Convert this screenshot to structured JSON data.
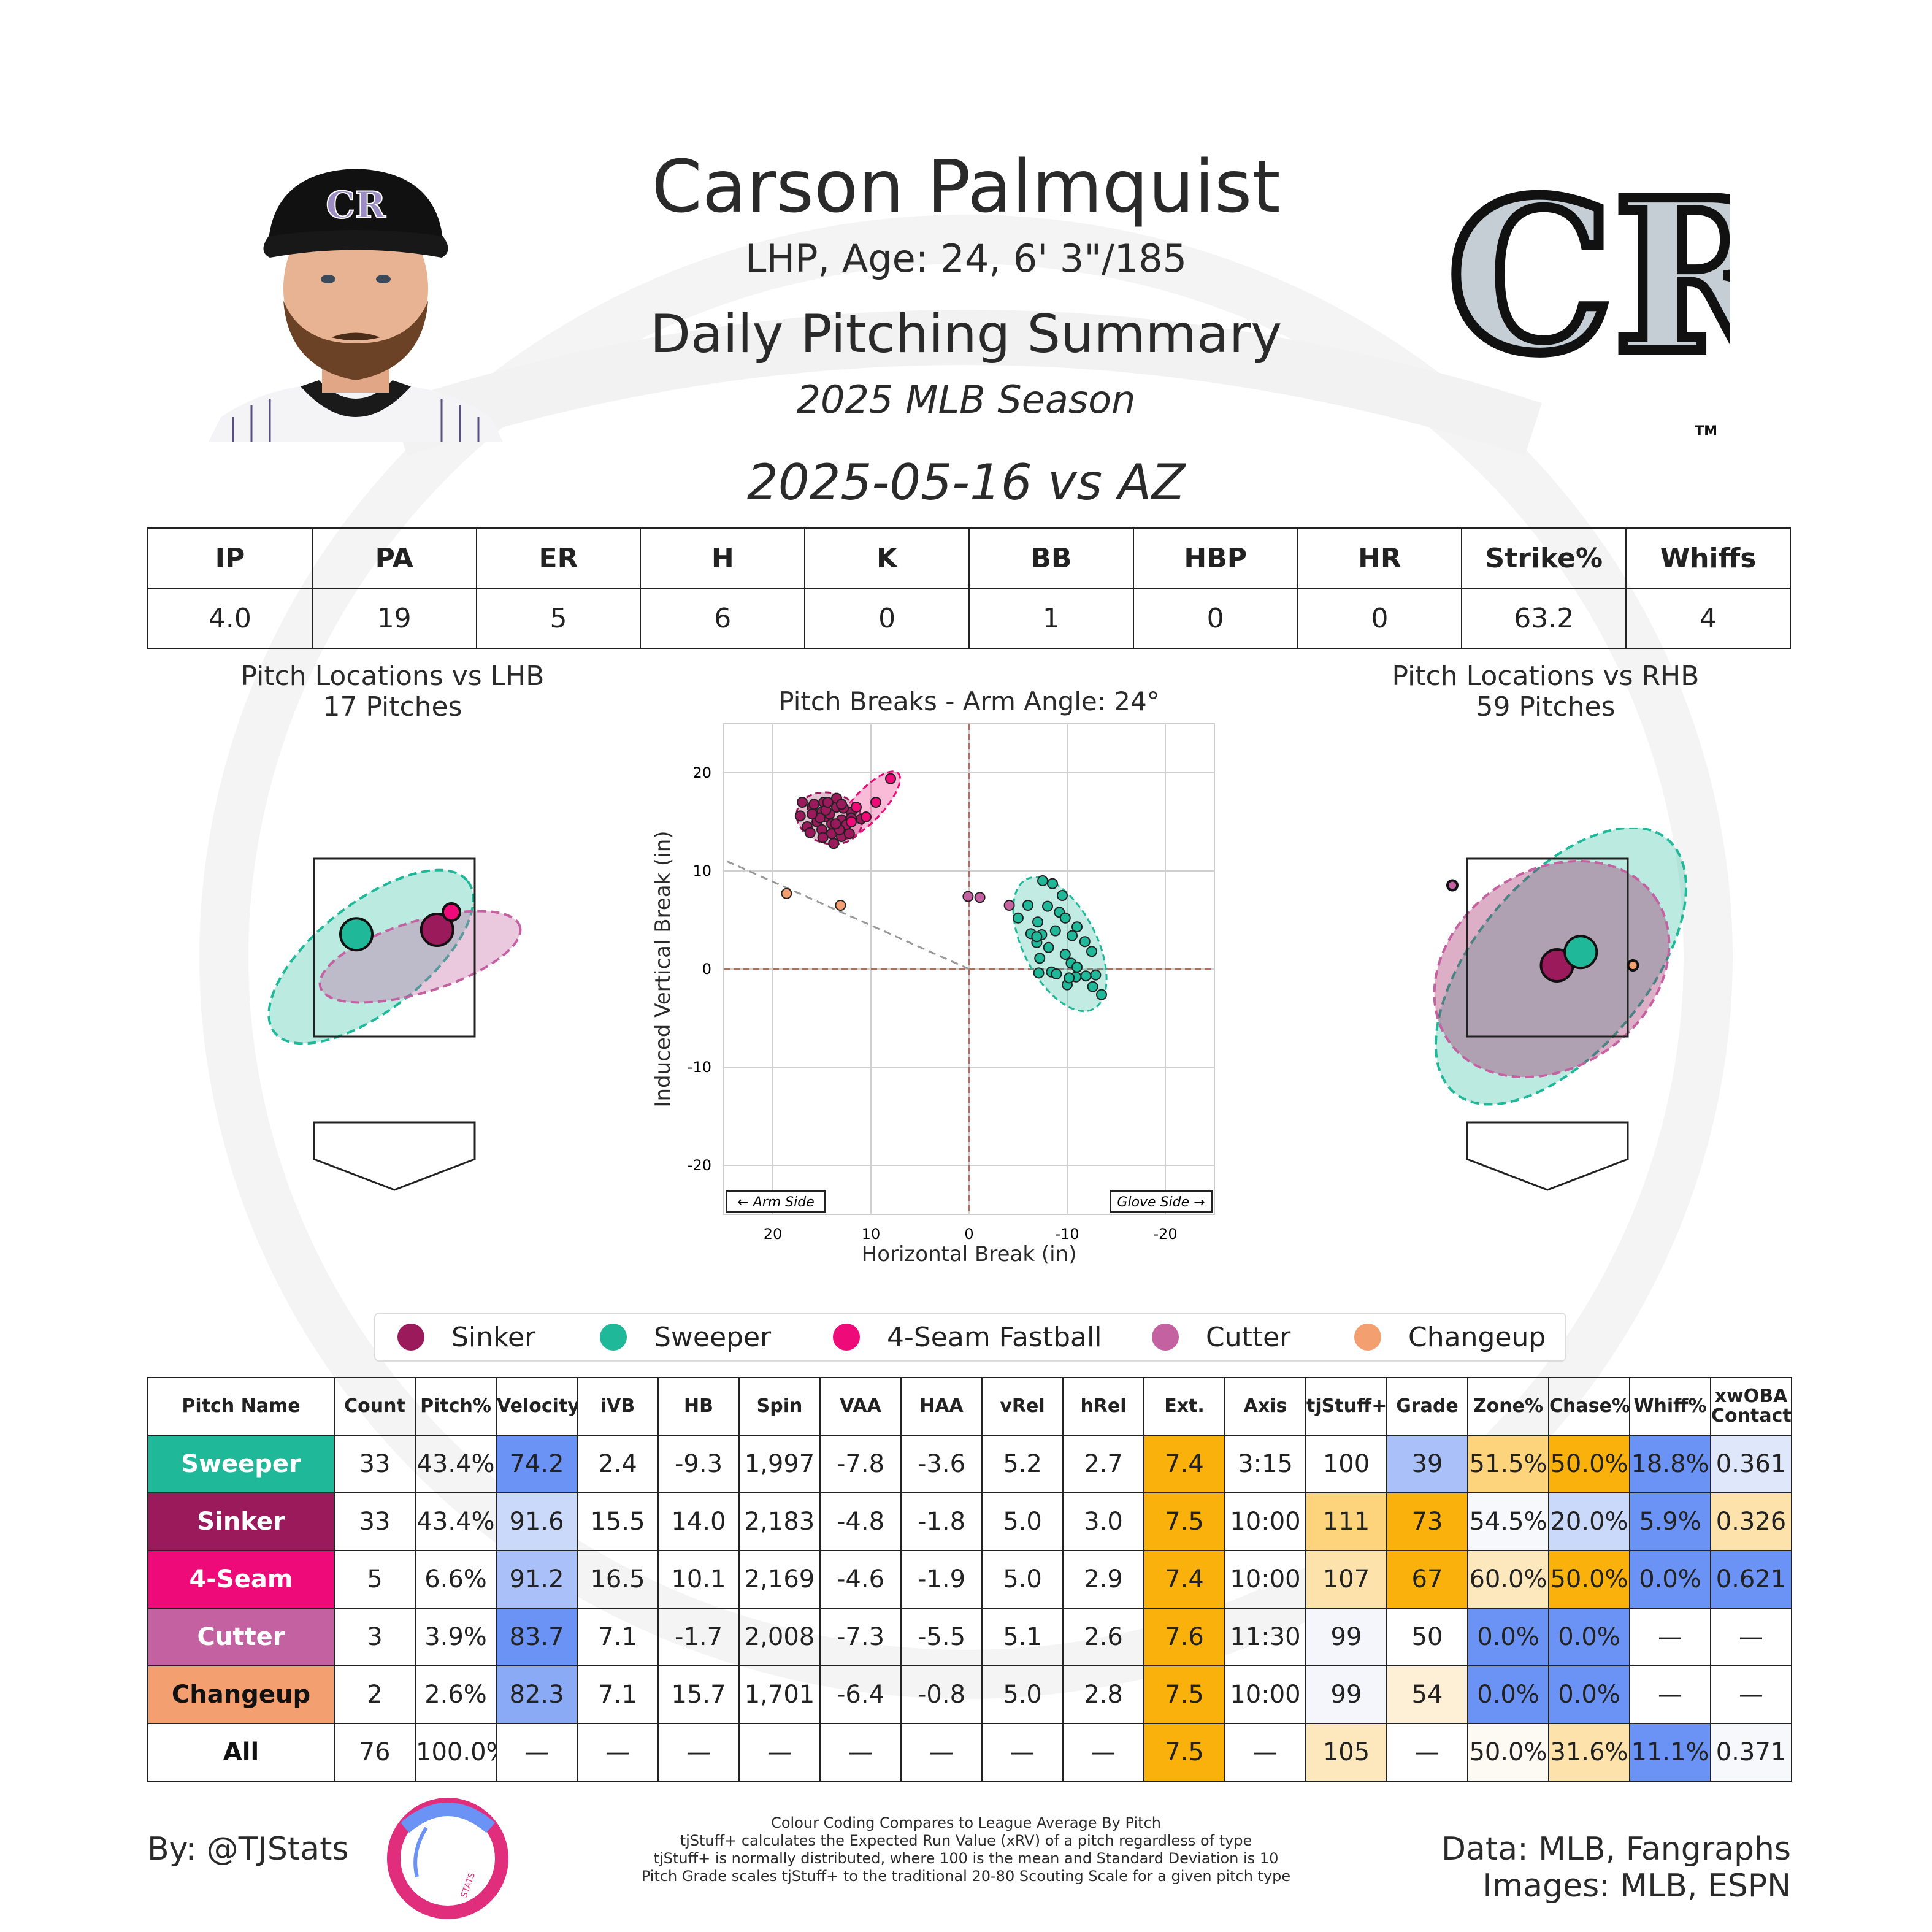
{
  "header": {
    "name": "Carson Palmquist",
    "bio": "LHP, Age: 24, 6' 3\"/185",
    "summary_title": "Daily Pitching Summary",
    "season": "2025 MLB Season",
    "game": "2025-05-16 vs AZ",
    "cap_logo_text": "CR",
    "team_logo_text": "CR",
    "trademark": "TM"
  },
  "game_stats": {
    "headers": [
      "IP",
      "PA",
      "ER",
      "H",
      "K",
      "BB",
      "HBP",
      "HR",
      "Strike%",
      "Whiffs"
    ],
    "values": [
      "4.0",
      "19",
      "5",
      "6",
      "0",
      "1",
      "0",
      "0",
      "63.2",
      "4"
    ]
  },
  "colors": {
    "Sinker": "#9a1a5c",
    "Sweeper": "#1fb899",
    "4-Seam Fastball": "#ee0a78",
    "Cutter": "#c461a1",
    "Changeup": "#f39f6f"
  },
  "chart_data": [
    {
      "type": "scatter",
      "id": "loc_lhb",
      "title": "Pitch Locations vs LHB",
      "subtitle": "17 Pitches",
      "series": [
        {
          "name": "Sweeper",
          "mean": [
            -0.4,
            2.65
          ]
        },
        {
          "name": "Sinker",
          "mean": [
            0.45,
            2.7
          ]
        },
        {
          "name": "4-Seam Fastball",
          "mean": [
            0.6,
            2.9
          ]
        }
      ]
    },
    {
      "type": "scatter",
      "id": "pitch_breaks",
      "title": "Pitch Breaks - Arm Angle: 24°",
      "xlabel": "Horizontal Break (in)",
      "ylabel": "Induced Vertical Break (in)",
      "xlim": [
        25,
        -25
      ],
      "ylim": [
        -25,
        25
      ],
      "x_ticks": [
        20,
        10,
        0,
        -10,
        -20
      ],
      "y_ticks": [
        20,
        10,
        0,
        -10,
        -20
      ],
      "annotations": [
        "← Arm Side",
        "Glove Side →"
      ],
      "arm_angle_deg": 24,
      "series": [
        {
          "name": "Sinker",
          "points": [
            [
              17,
              17
            ],
            [
              16,
              16.5
            ],
            [
              15,
              16
            ],
            [
              14.5,
              15.5
            ],
            [
              15.5,
              15
            ],
            [
              14,
              14.8
            ],
            [
              13.5,
              16.5
            ],
            [
              13,
              15.2
            ],
            [
              14.2,
              15.8
            ],
            [
              15,
              14.2
            ],
            [
              16.5,
              14.5
            ],
            [
              12.5,
              14.7
            ],
            [
              13,
              13.5
            ],
            [
              14,
              13.8
            ],
            [
              12,
              16
            ],
            [
              13.5,
              17.4
            ],
            [
              14.8,
              17
            ],
            [
              12,
              15.4
            ],
            [
              11,
              15.3
            ],
            [
              13.8,
              12.8
            ],
            [
              15.2,
              15.4
            ],
            [
              14.6,
              16.2
            ],
            [
              16,
              15.8
            ],
            [
              13.2,
              14.2
            ],
            [
              12.8,
              16.4
            ],
            [
              14.4,
              17
            ],
            [
              15.8,
              16.8
            ],
            [
              12.2,
              13.8
            ],
            [
              13.6,
              14.8
            ],
            [
              17.2,
              15.6
            ],
            [
              14.9,
              13.4
            ],
            [
              16.2,
              13.9
            ],
            [
              13,
              16.8
            ]
          ]
        },
        {
          "name": "4-Seam Fastball",
          "points": [
            [
              8,
              19.4
            ],
            [
              9.5,
              17
            ],
            [
              11.5,
              16.5
            ],
            [
              10.5,
              15.5
            ],
            [
              12,
              15
            ]
          ]
        },
        {
          "name": "Sweeper",
          "points": [
            [
              -7.5,
              9
            ],
            [
              -8.5,
              8.7
            ],
            [
              -9.5,
              7.5
            ],
            [
              -6,
              6.5
            ],
            [
              -8,
              6.4
            ],
            [
              -9.2,
              5.8
            ],
            [
              -5,
              5.2
            ],
            [
              -7,
              4.8
            ],
            [
              -9.8,
              5.2
            ],
            [
              -11,
              4.3
            ],
            [
              -6.3,
              3.6
            ],
            [
              -7.4,
              3.5
            ],
            [
              -8.8,
              3.9
            ],
            [
              -10.5,
              3.4
            ],
            [
              -6.9,
              2.7
            ],
            [
              -8.1,
              2.2
            ],
            [
              -11.8,
              2.8
            ],
            [
              -12.5,
              1.8
            ],
            [
              -9.8,
              1.5
            ],
            [
              -7.2,
              1.1
            ],
            [
              -10.4,
              0.6
            ],
            [
              -8.4,
              -0.3
            ],
            [
              -11,
              0.2
            ],
            [
              -12.9,
              -0.6
            ],
            [
              -7.1,
              -0.4
            ],
            [
              -8.9,
              -0.5
            ],
            [
              -10.9,
              -0.8
            ],
            [
              -11.9,
              -0.7
            ],
            [
              -6.9,
              3.3
            ],
            [
              -10,
              -1.6
            ],
            [
              -10.2,
              -0.9
            ],
            [
              -13.5,
              -2.6
            ],
            [
              -12.6,
              -1.8
            ]
          ]
        },
        {
          "name": "Cutter",
          "points": [
            [
              0.1,
              7.4
            ],
            [
              -1.1,
              7.3
            ],
            [
              -4.1,
              6.5
            ]
          ]
        },
        {
          "name": "Changeup",
          "points": [
            [
              18.6,
              7.7
            ],
            [
              13.1,
              6.5
            ]
          ]
        }
      ]
    },
    {
      "type": "scatter",
      "id": "loc_rhb",
      "title": "Pitch Locations vs RHB",
      "subtitle": "59 Pitches",
      "series": [
        {
          "name": "Sinker",
          "mean": [
            0.1,
            2.3
          ]
        },
        {
          "name": "Sweeper",
          "mean": [
            0.35,
            2.45
          ]
        },
        {
          "name": "Changeup",
          "mean": [
            0.9,
            2.3
          ]
        },
        {
          "name": "Cutter",
          "mean": [
            -1.0,
            3.2
          ]
        }
      ]
    },
    {
      "type": "table",
      "id": "pitch_metrics",
      "headers": [
        "Pitch Name",
        "Count",
        "Pitch%",
        "Velocity",
        "iVB",
        "HB",
        "Spin",
        "VAA",
        "HAA",
        "vRel",
        "hRel",
        "Ext.",
        "Axis",
        "tjStuff+",
        "Grade",
        "Zone%",
        "Chase%",
        "Whiff%",
        "xwOBA Contact"
      ],
      "rows": [
        {
          "pitch": "Sweeper",
          "label": "Sweeper",
          "color": "#1fb899",
          "text": "#ffffff",
          "cells": [
            "33",
            "43.4%",
            "74.2",
            "2.4",
            "-9.3",
            "1,997",
            "-7.8",
            "-3.6",
            "5.2",
            "2.7",
            "7.4",
            "3:15",
            "100",
            "39",
            "51.5%",
            "50.0%",
            "18.8%",
            "0.361"
          ]
        },
        {
          "pitch": "Sinker",
          "label": "Sinker",
          "color": "#9a1a5c",
          "text": "#ffffff",
          "cells": [
            "33",
            "43.4%",
            "91.6",
            "15.5",
            "14.0",
            "2,183",
            "-4.8",
            "-1.8",
            "5.0",
            "3.0",
            "7.5",
            "10:00",
            "111",
            "73",
            "54.5%",
            "20.0%",
            "5.9%",
            "0.326"
          ]
        },
        {
          "pitch": "4-Seam Fastball",
          "label": "4-Seam",
          "color": "#ee0a78",
          "text": "#ffffff",
          "cells": [
            "5",
            "6.6%",
            "91.2",
            "16.5",
            "10.1",
            "2,169",
            "-4.6",
            "-1.9",
            "5.0",
            "2.9",
            "7.4",
            "10:00",
            "107",
            "67",
            "60.0%",
            "50.0%",
            "0.0%",
            "0.621"
          ]
        },
        {
          "pitch": "Cutter",
          "label": "Cutter",
          "color": "#c461a1",
          "text": "#ffffff",
          "cells": [
            "3",
            "3.9%",
            "83.7",
            "7.1",
            "-1.7",
            "2,008",
            "-7.3",
            "-5.5",
            "5.1",
            "2.6",
            "7.6",
            "11:30",
            "99",
            "50",
            "0.0%",
            "0.0%",
            "—",
            "—"
          ]
        },
        {
          "pitch": "Changeup",
          "label": "Changeup",
          "color": "#f39f6f",
          "text": "#111111",
          "cells": [
            "2",
            "2.6%",
            "82.3",
            "7.1",
            "15.7",
            "1,701",
            "-6.4",
            "-0.8",
            "5.0",
            "2.8",
            "7.5",
            "10:00",
            "99",
            "54",
            "0.0%",
            "0.0%",
            "—",
            "—"
          ]
        },
        {
          "pitch": "All",
          "label": "All",
          "color": "#ffffff",
          "text": "#111111",
          "cells": [
            "76",
            "100.0%",
            "—",
            "—",
            "—",
            "—",
            "—",
            "—",
            "—",
            "—",
            "7.5",
            "—",
            "105",
            "—",
            "50.0%",
            "31.6%",
            "11.1%",
            "0.371"
          ]
        }
      ],
      "cell_colors": [
        [
          "",
          "",
          "#6b93f5",
          "",
          "",
          "",
          "",
          "",
          "",
          "",
          "#fbb10b",
          "",
          "",
          "#a9c1f8",
          "#fdd47b",
          "#fbb10b",
          "#6b93f5",
          "#dfe7fb"
        ],
        [
          "",
          "",
          "#cad8f9",
          "",
          "",
          "",
          "",
          "",
          "",
          "",
          "#fbb10b",
          "",
          "#fdd47b",
          "#fbb10b",
          "#f7f8fb",
          "#cad8f9",
          "#6b93f5",
          "#fde3ab"
        ],
        [
          "",
          "",
          "#a9c1f8",
          "",
          "",
          "",
          "",
          "",
          "",
          "",
          "#fbb10b",
          "",
          "#fde3ab",
          "#fbb10b",
          "#fde8bd",
          "#fbb10b",
          "#6b93f5",
          "#6b93f5"
        ],
        [
          "",
          "",
          "#6b93f5",
          "",
          "",
          "",
          "",
          "",
          "",
          "",
          "#fbb10b",
          "",
          "#f4f6fb",
          "",
          "#6b93f5",
          "#6b93f5",
          "",
          ""
        ],
        [
          "",
          "",
          "#8aaaf6",
          "",
          "",
          "",
          "",
          "",
          "",
          "",
          "#fbb10b",
          "",
          "#f4f6fb",
          "#fdf0d7",
          "#6b93f5",
          "#6b93f5",
          "",
          ""
        ],
        [
          "",
          "",
          "",
          "",
          "",
          "",
          "",
          "",
          "",
          "",
          "#fbb10b",
          "",
          "#fde8bd",
          "",
          "#fdfaf3",
          "#fde3ab",
          "#6b93f5",
          "#f7f8fb"
        ]
      ]
    }
  ],
  "legend": [
    "Sinker",
    "Sweeper",
    "4-Seam Fastball",
    "Cutter",
    "Changeup"
  ],
  "footer": {
    "byline": "By: @TJStats",
    "logo_text": "STATS",
    "notes": [
      "Colour Coding Compares to League Average By Pitch",
      "tjStuff+ calculates the Expected Run Value (xRV) of a pitch regardless of type",
      "tjStuff+ is normally distributed, where 100 is the mean and Standard Deviation is 10",
      "Pitch Grade scales tjStuff+ to the traditional 20-80 Scouting Scale for a given pitch type"
    ],
    "credits": [
      "Data: MLB, Fangraphs",
      "Images: MLB, ESPN"
    ]
  }
}
